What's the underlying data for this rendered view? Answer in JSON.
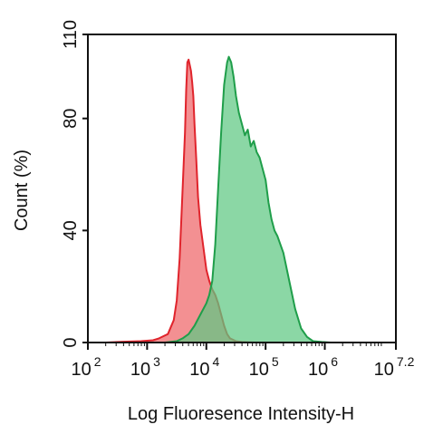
{
  "chart_data": {
    "type": "area",
    "title": "",
    "xlabel": "Log Fluoresence Intensity-H",
    "ylabel": "Count  (%)",
    "x_scale": "log",
    "xlim_exponent": [
      2,
      7.2
    ],
    "ylim": [
      0,
      110
    ],
    "y_ticks": [
      0,
      40,
      80,
      110
    ],
    "x_ticks": [
      {
        "base": "10",
        "exp": "2",
        "value_exponent": 2
      },
      {
        "base": "10",
        "exp": "3",
        "value_exponent": 3
      },
      {
        "base": "10",
        "exp": "4",
        "value_exponent": 4
      },
      {
        "base": "10",
        "exp": "5",
        "value_exponent": 5
      },
      {
        "base": "10",
        "exp": "6",
        "value_exponent": 6
      },
      {
        "base": "10",
        "exp": "7.2",
        "value_exponent": 7.2
      }
    ],
    "grid": false,
    "legend": "none",
    "series": [
      {
        "color_line": "#e0242c",
        "color_fill": "#f0787a",
        "fill_opacity": 0.82,
        "x_exponent": [
          2.0,
          2.3,
          2.6,
          2.9,
          3.1,
          3.2,
          3.35,
          3.45,
          3.5,
          3.55,
          3.6,
          3.64,
          3.66,
          3.68,
          3.7,
          3.72,
          3.74,
          3.76,
          3.78,
          3.8,
          3.83,
          3.86,
          3.9,
          3.95,
          4.0,
          4.05,
          4.1,
          4.15,
          4.2,
          4.25,
          4.3,
          4.35,
          4.4,
          4.5,
          4.6,
          4.8
        ],
        "y": [
          0,
          0,
          0.3,
          0.5,
          0.8,
          1.5,
          3,
          8,
          15,
          30,
          55,
          75,
          90,
          100,
          101,
          99,
          97,
          93,
          88,
          78,
          65,
          52,
          42,
          34,
          26,
          22,
          19,
          17,
          14,
          10,
          6,
          3,
          1.5,
          0.5,
          0.2,
          0
        ]
      },
      {
        "color_line": "#1f9e4a",
        "color_fill": "#5ec882",
        "fill_opacity": 0.72,
        "x_exponent": [
          3.3,
          3.5,
          3.6,
          3.7,
          3.8,
          3.9,
          4.0,
          4.05,
          4.1,
          4.15,
          4.2,
          4.25,
          4.3,
          4.35,
          4.38,
          4.42,
          4.46,
          4.5,
          4.55,
          4.6,
          4.65,
          4.7,
          4.75,
          4.8,
          4.85,
          4.9,
          4.95,
          5.0,
          5.05,
          5.1,
          5.15,
          5.2,
          5.3,
          5.4,
          5.5,
          5.6,
          5.7,
          5.8,
          5.95,
          6.1
        ],
        "y": [
          0,
          0.5,
          1.5,
          3,
          6,
          10,
          14,
          17,
          22,
          35,
          55,
          75,
          92,
          100,
          102,
          100,
          95,
          88,
          82,
          78,
          74,
          76,
          70,
          72,
          68,
          66,
          62,
          58,
          50,
          44,
          40,
          38,
          32,
          22,
          12,
          5,
          2,
          0.5,
          0.2,
          0
        ]
      }
    ]
  }
}
